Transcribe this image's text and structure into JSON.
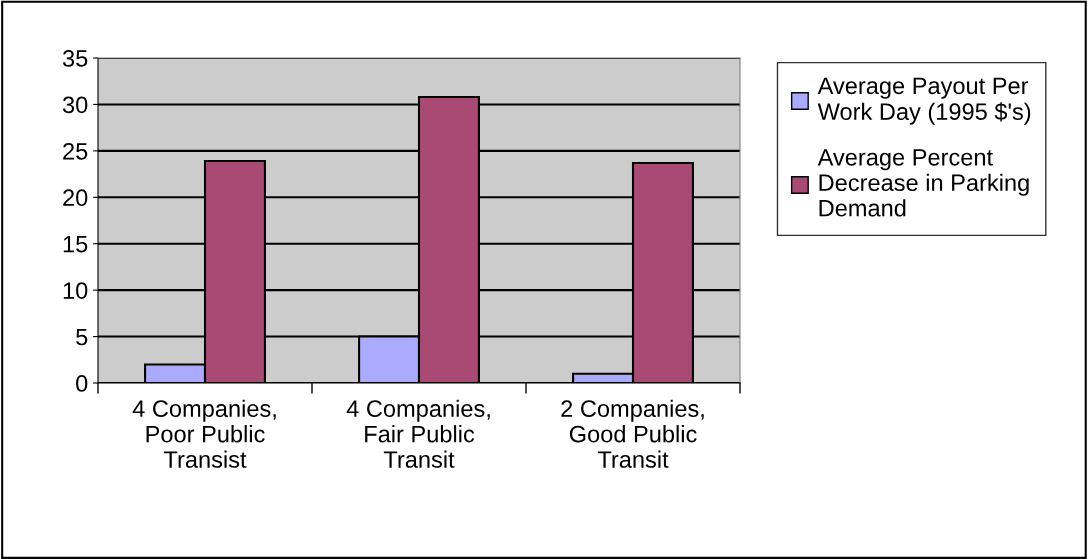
{
  "chart_data": {
    "type": "bar",
    "categories": [
      "4 Companies, Poor Public Transist",
      "4 Companies, Fair Public Transit",
      "2 Companies, Good Public Transit"
    ],
    "series": [
      {
        "name": "Average Payout Per Work Day (1995 $'s)",
        "color": "#aaaaff",
        "values": [
          2,
          5,
          1
        ]
      },
      {
        "name": "Average Percent Decrease in Parking Demand",
        "color": "#a94a75",
        "values": [
          23.9,
          30.8,
          23.7
        ]
      }
    ],
    "ylim": [
      0,
      35
    ],
    "yticks": [
      0,
      5,
      10,
      15,
      20,
      25,
      30,
      35
    ],
    "grid": "y",
    "legend": "right"
  }
}
